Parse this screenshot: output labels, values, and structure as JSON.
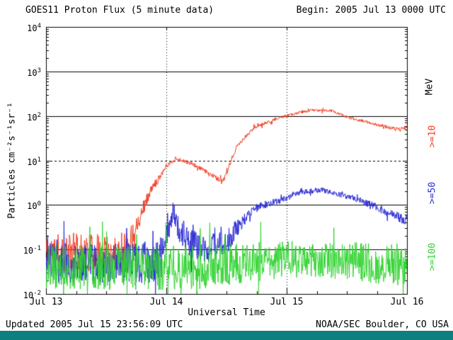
{
  "header": {
    "title": "GOES11 Proton Flux (5 minute data)",
    "begin": "Begin: 2005 Jul 13 0000 UTC"
  },
  "footer": {
    "updated": "Updated 2005 Jul 15 23:56:09 UTC",
    "source": "NOAA/SEC Boulder, CO USA",
    "bar_color": "#0e7f7f"
  },
  "colors": {
    "red": "#f03b20",
    "blue": "#2a2ad4",
    "green": "#2ed22e",
    "axis": "#000000"
  },
  "axis": {
    "ylabel": "Particles cm⁻²s⁻¹sr⁻¹",
    "xlabel": "Universal Time",
    "right_unit": "MeV",
    "y_exponents": [
      4,
      3,
      2,
      1,
      0,
      -1,
      -2
    ],
    "x_tick_labels": [
      "Jul 13",
      "Jul 14",
      "Jul 15",
      "Jul 16"
    ]
  },
  "legend": [
    {
      "label": ">=10",
      "color": "red"
    },
    {
      "label": ">=50",
      "color": "blue"
    },
    {
      "label": ">=100",
      "color": "green"
    }
  ],
  "chart_data": {
    "type": "line",
    "title": "GOES11 Proton Flux (5 minute data)",
    "xlabel": "Universal Time",
    "ylabel": "Particles cm-2 s-1 sr-1",
    "x_unit": "hours since 2005 Jul 13 0000 UTC",
    "x_range": [
      0,
      72
    ],
    "x_tick_labels": [
      "Jul 13",
      "Jul 14",
      "Jul 15",
      "Jul 16"
    ],
    "y_scale": "log10",
    "y_range_exponents": [
      -2,
      4
    ],
    "solid_gridline_levels": [
      1000,
      100,
      1,
      0.1
    ],
    "dashed_gridline_levels": [
      10
    ],
    "dotted_vertical_gridlines_hours": [
      24,
      48
    ],
    "sample_interval_minutes": 5,
    "series": [
      {
        "name": ">=10 MeV",
        "color": "red",
        "seed": 11,
        "anchors": [
          [
            0,
            0.085,
            0.42
          ],
          [
            15,
            0.085,
            0.42
          ],
          [
            17,
            0.18,
            0.3
          ],
          [
            19,
            0.7,
            0.18
          ],
          [
            21,
            2.2,
            0.1
          ],
          [
            24,
            7.5,
            0.05
          ],
          [
            26,
            11,
            0.04
          ],
          [
            29,
            8.5,
            0.045
          ],
          [
            33,
            4.8,
            0.05
          ],
          [
            35.3,
            3.3,
            0.06
          ],
          [
            36.5,
            7,
            0.05
          ],
          [
            38,
            20,
            0.045
          ],
          [
            41.5,
            55,
            0.04
          ],
          [
            46.5,
            90,
            0.035
          ],
          [
            50,
            115,
            0.03
          ],
          [
            53,
            135,
            0.03
          ],
          [
            57,
            130,
            0.03
          ],
          [
            60,
            95,
            0.03
          ],
          [
            63.5,
            75,
            0.035
          ],
          [
            67,
            60,
            0.035
          ],
          [
            70,
            50,
            0.04
          ],
          [
            72,
            55,
            0.04
          ]
        ]
      },
      {
        "name": ">=50 MeV",
        "color": "blue",
        "seed": 23,
        "anchors": [
          [
            0,
            0.05,
            0.45
          ],
          [
            22,
            0.05,
            0.45
          ],
          [
            24,
            0.18,
            0.3
          ],
          [
            25.3,
            0.75,
            0.25
          ],
          [
            26.5,
            0.3,
            0.3
          ],
          [
            29,
            0.13,
            0.33
          ],
          [
            33,
            0.1,
            0.35
          ],
          [
            36,
            0.14,
            0.3
          ],
          [
            38,
            0.3,
            0.2
          ],
          [
            40,
            0.55,
            0.12
          ],
          [
            42,
            0.85,
            0.1
          ],
          [
            44,
            1.05,
            0.08
          ],
          [
            48,
            1.4,
            0.07
          ],
          [
            50,
            1.9,
            0.07
          ],
          [
            55,
            2.2,
            0.06
          ],
          [
            58,
            1.8,
            0.06
          ],
          [
            61.5,
            1.4,
            0.07
          ],
          [
            65.5,
            0.95,
            0.08
          ],
          [
            69,
            0.62,
            0.1
          ],
          [
            72,
            0.45,
            0.12
          ]
        ]
      },
      {
        "name": ">=100 MeV",
        "color": "green",
        "seed": 37,
        "anchors": [
          [
            0,
            0.04,
            0.5
          ],
          [
            30,
            0.038,
            0.5
          ],
          [
            40,
            0.05,
            0.45
          ],
          [
            48,
            0.06,
            0.42
          ],
          [
            56,
            0.06,
            0.42
          ],
          [
            64,
            0.05,
            0.45
          ],
          [
            72,
            0.045,
            0.48
          ]
        ]
      }
    ]
  }
}
